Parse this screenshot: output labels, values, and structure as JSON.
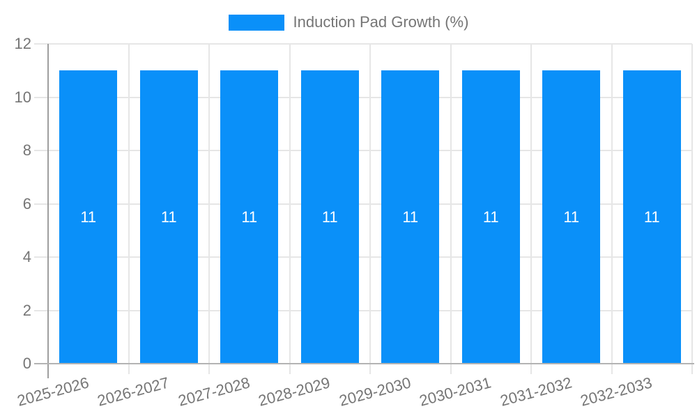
{
  "chart_data": {
    "type": "bar",
    "title": "",
    "xlabel": "",
    "ylabel": "",
    "categories": [
      "2025-2026",
      "2026-2027",
      "2027-2028",
      "2028-2029",
      "2029-2030",
      "2030-2031",
      "2031-2032",
      "2032-2033"
    ],
    "series": [
      {
        "name": "Induction Pad Growth (%)",
        "values": [
          11,
          11,
          11,
          11,
          11,
          11,
          11,
          11
        ]
      }
    ],
    "bar_value_labels": [
      "11",
      "11",
      "11",
      "11",
      "11",
      "11",
      "11",
      "11"
    ],
    "ylim": [
      0,
      12
    ],
    "yticks": [
      0,
      2,
      4,
      6,
      8,
      10,
      12
    ],
    "grid": true,
    "legend_position": "top-center",
    "colors": {
      "bar": "#0a90f9",
      "value_label": "#ffffff",
      "axis_label": "#757575",
      "legend_label": "#757575",
      "grid_line": "#e6e6e6",
      "axis_line": "#9e9e9e",
      "zero_line": "#b3b3b3",
      "background": "#ffffff"
    }
  }
}
